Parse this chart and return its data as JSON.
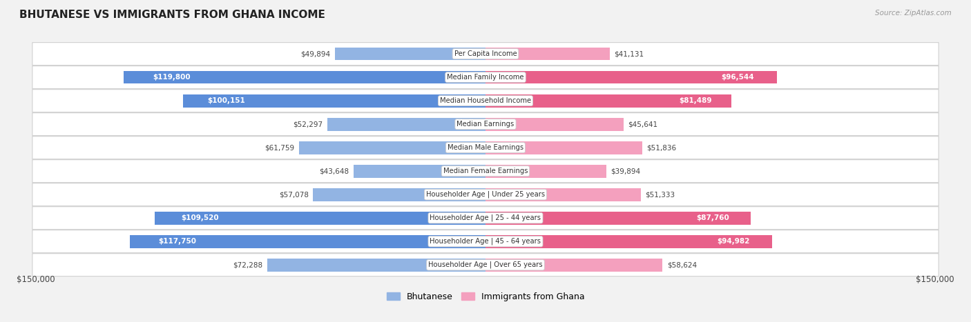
{
  "title": "BHUTANESE VS IMMIGRANTS FROM GHANA INCOME",
  "source": "Source: ZipAtlas.com",
  "max_value": 150000,
  "blue_color": "#92b4e3",
  "blue_color_dark": "#5b8dd9",
  "pink_color": "#f4a0be",
  "pink_color_dark": "#e8608a",
  "bg_color": "#f2f2f2",
  "categories": [
    "Per Capita Income",
    "Median Family Income",
    "Median Household Income",
    "Median Earnings",
    "Median Male Earnings",
    "Median Female Earnings",
    "Householder Age | Under 25 years",
    "Householder Age | 25 - 44 years",
    "Householder Age | 45 - 64 years",
    "Householder Age | Over 65 years"
  ],
  "bhutanese": [
    49894,
    119800,
    100151,
    52297,
    61759,
    43648,
    57078,
    109520,
    117750,
    72288
  ],
  "ghana": [
    41131,
    96544,
    81489,
    45641,
    51836,
    39894,
    51333,
    87760,
    94982,
    58624
  ],
  "label_inside_blue": [
    false,
    true,
    true,
    false,
    false,
    false,
    false,
    true,
    true,
    false
  ],
  "label_inside_pink": [
    false,
    true,
    true,
    false,
    false,
    false,
    false,
    true,
    true,
    false
  ],
  "xlabel_left": "$150,000",
  "xlabel_right": "$150,000",
  "legend_blue": "Bhutanese",
  "legend_pink": "Immigrants from Ghana"
}
